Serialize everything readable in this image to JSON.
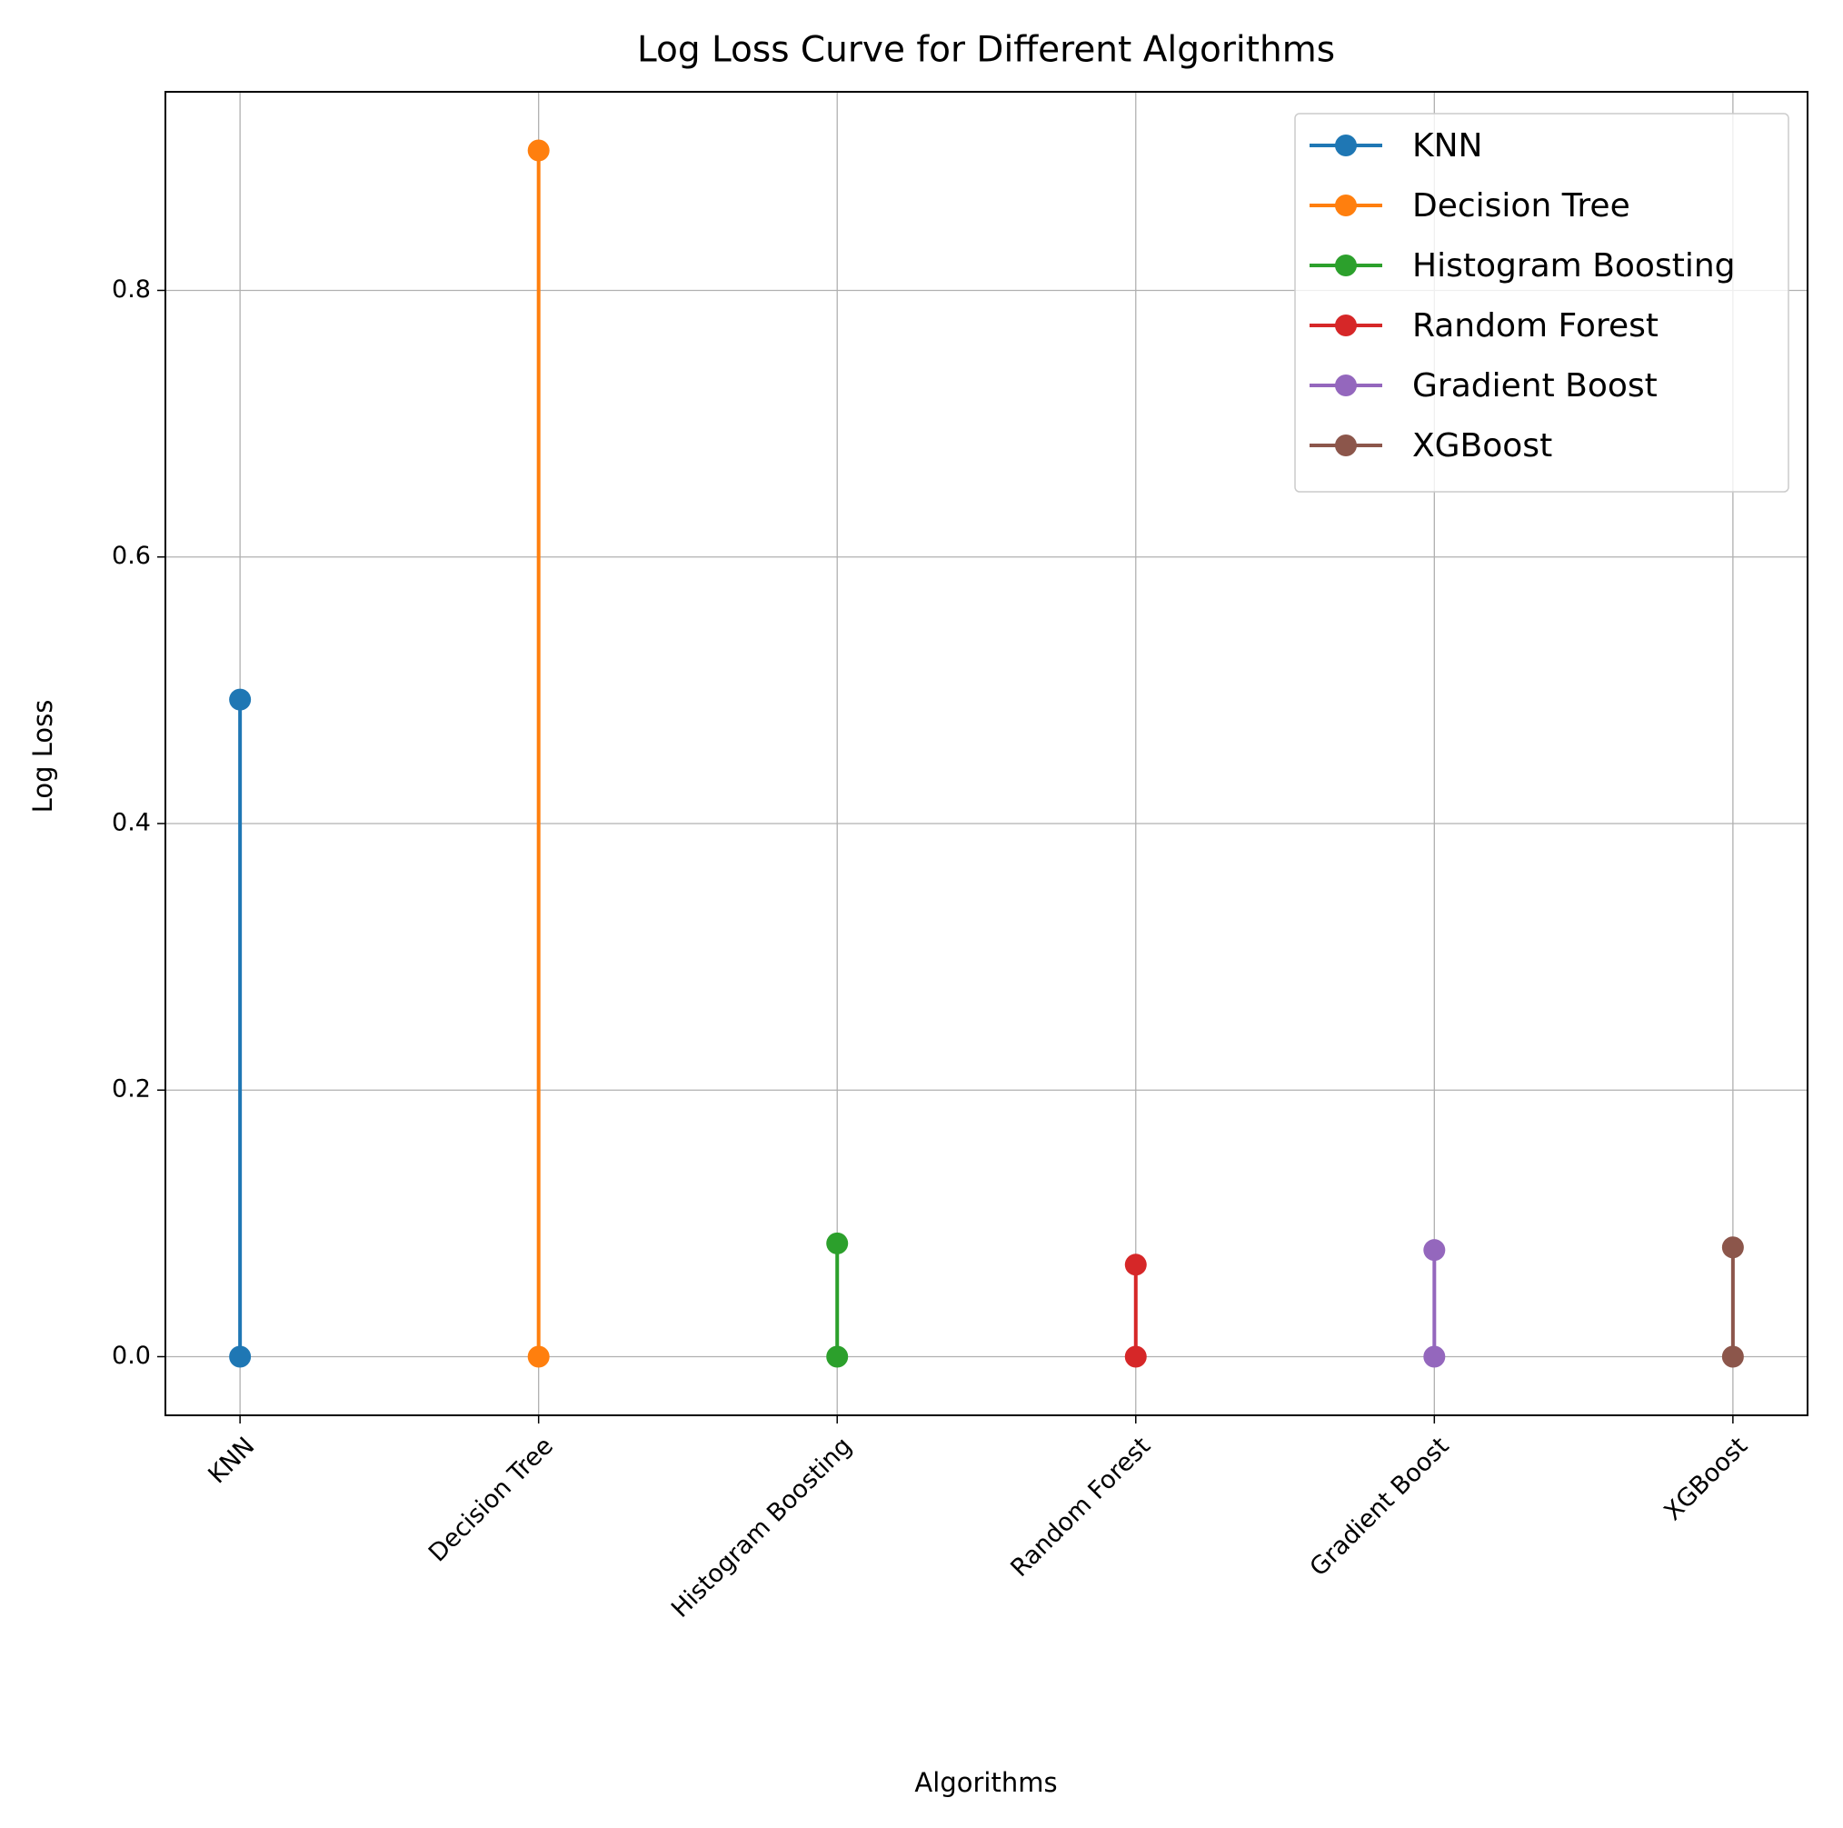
{
  "chart_data": {
    "type": "line",
    "title": "Log Loss Curve for Different Algorithms",
    "xlabel": "Algorithms",
    "ylabel": "Log Loss",
    "categories": [
      "KNN",
      "Decision Tree",
      "Histogram Boosting",
      "Random Forest",
      "Gradient Boost",
      "XGBoost"
    ],
    "series": [
      {
        "name": "KNN",
        "color": "#1f77b4",
        "x": [
          "KNN",
          "KNN"
        ],
        "values": [
          0,
          0.493
        ]
      },
      {
        "name": "Decision Tree",
        "color": "#ff7f0e",
        "x": [
          "Decision Tree",
          "Decision Tree"
        ],
        "values": [
          0,
          0.905
        ]
      },
      {
        "name": "Histogram Boosting",
        "color": "#2ca02c",
        "x": [
          "Histogram Boosting",
          "Histogram Boosting"
        ],
        "values": [
          0,
          0.085
        ]
      },
      {
        "name": "Random Forest",
        "color": "#d62728",
        "x": [
          "Random Forest",
          "Random Forest"
        ],
        "values": [
          0,
          0.069
        ]
      },
      {
        "name": "Gradient Boost",
        "color": "#9467bd",
        "x": [
          "Gradient Boost",
          "Gradient Boost"
        ],
        "values": [
          0,
          0.08
        ]
      },
      {
        "name": "XGBoost",
        "color": "#8c564b",
        "x": [
          "XGBoost",
          "XGBoost"
        ],
        "values": [
          0,
          0.082
        ]
      }
    ],
    "ylim": [
      -0.044,
      0.949
    ],
    "yticks": [
      {
        "value": 0,
        "label": "0.0"
      },
      0.2,
      0.4,
      0.6,
      0.8
    ],
    "grid": true,
    "legend": "upper right"
  }
}
